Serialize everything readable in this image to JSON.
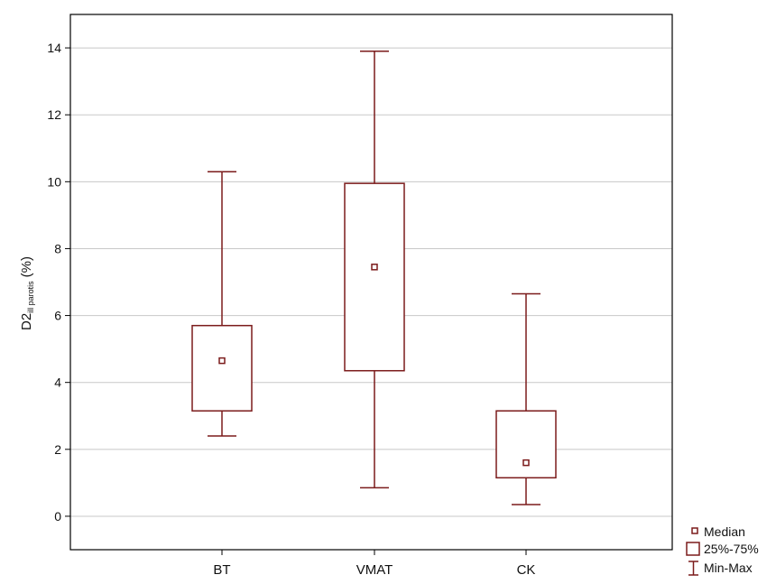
{
  "chart_data": {
    "type": "boxplot",
    "categories": [
      "BT",
      "VMAT",
      "CK"
    ],
    "boxes": [
      {
        "category": "BT",
        "min": 2.4,
        "q1": 3.15,
        "median": 4.65,
        "q3": 5.7,
        "max": 10.3
      },
      {
        "category": "VMAT",
        "min": 0.85,
        "q1": 4.35,
        "median": 7.45,
        "q3": 9.95,
        "max": 13.9
      },
      {
        "category": "CK",
        "min": 0.35,
        "q1": 1.15,
        "median": 1.6,
        "q3": 3.15,
        "max": 6.65
      }
    ],
    "ylabel_main": "D2",
    "ylabel_sub": "ill parotis",
    "ylabel_unit": "(%)",
    "xlabel": "",
    "ylim": [
      -1,
      15
    ],
    "yticks": [
      0,
      2,
      4,
      6,
      8,
      10,
      12,
      14
    ],
    "grid": true,
    "legend_position": "bottom-right",
    "legend": {
      "median": "Median",
      "box": "25%-75%",
      "whisker": "Min-Max"
    },
    "colors": {
      "series": "#7b1b1b",
      "grid": "#c8c8c8",
      "axis": "#000000"
    }
  }
}
